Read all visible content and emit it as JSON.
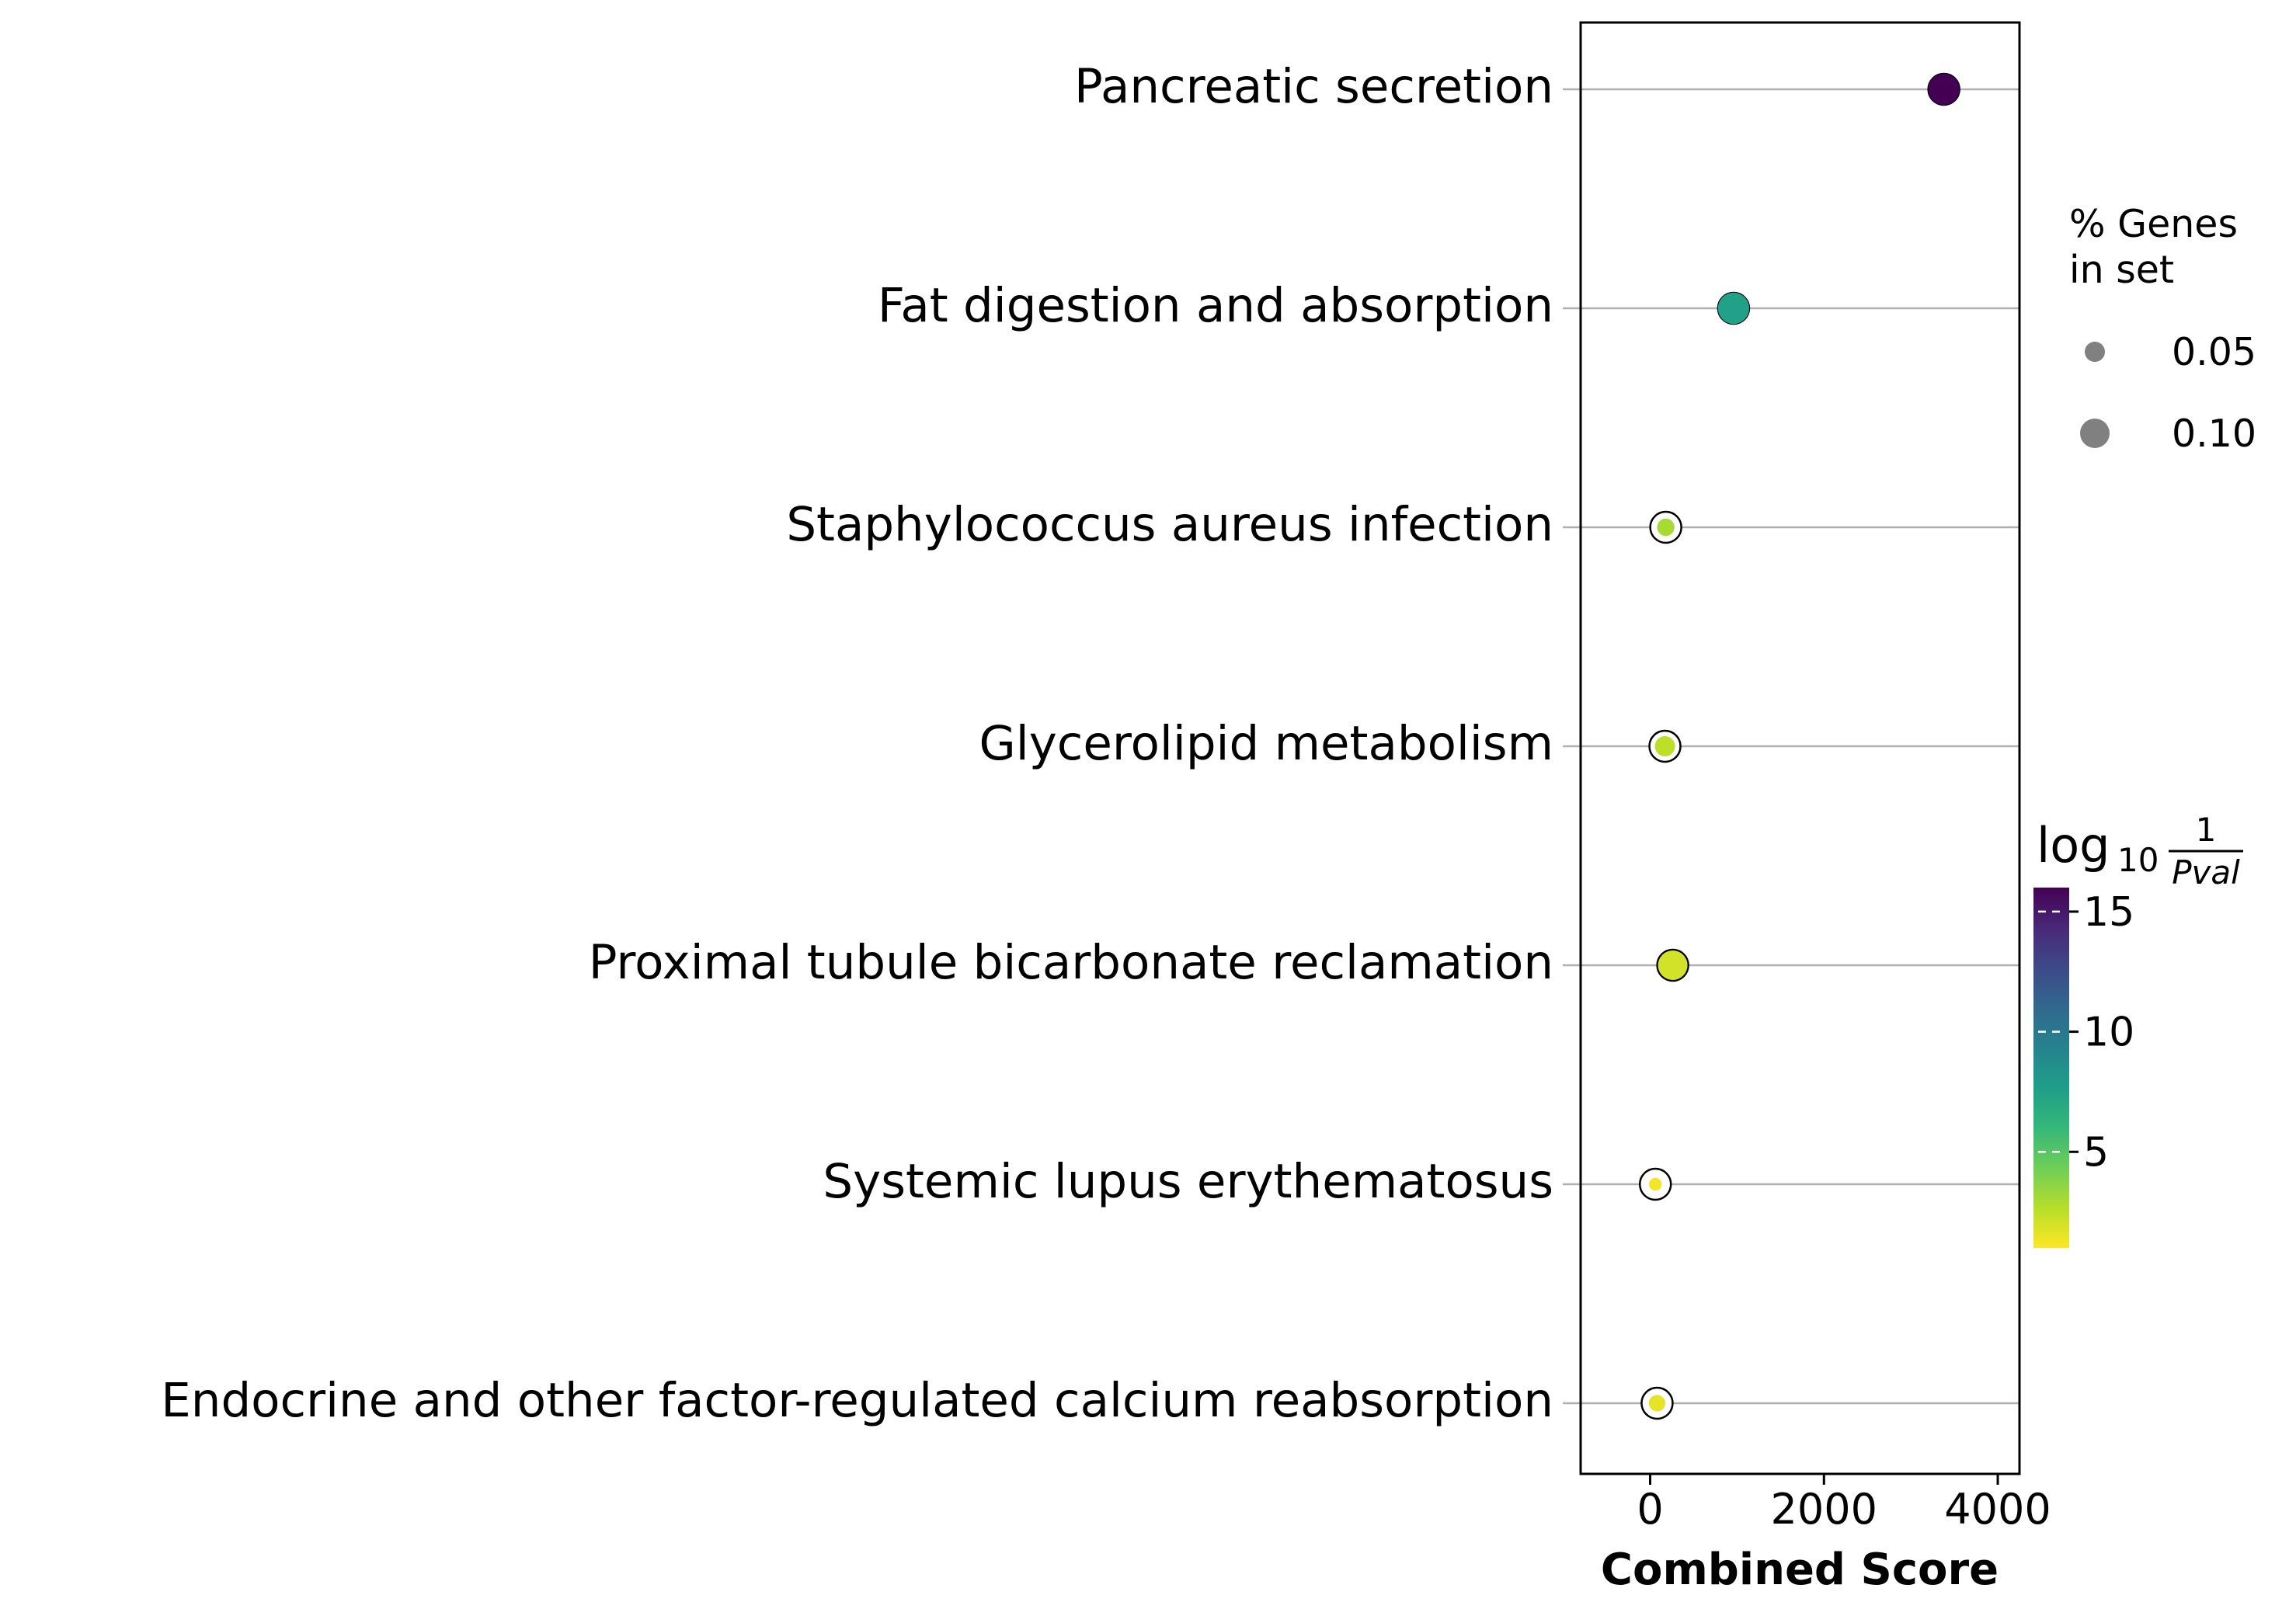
{
  "chart_data": {
    "type": "scatter",
    "title": "",
    "xlabel": "Combined Score",
    "ylabel": "",
    "xlim": [
      -800,
      4250
    ],
    "xticks": [
      0,
      2000,
      4000
    ],
    "xtick_labels": [
      "0",
      "2000",
      "4000"
    ],
    "grid": "horizontal lines at each category",
    "categories": [
      "Pancreatic secretion",
      "Fat digestion and absorption",
      "Staphylococcus aureus infection",
      "Glycerolipid metabolism",
      "Proximal tubule bicarbonate reclamation",
      "Systemic lupus erythematosus",
      "Endocrine and other factor-regulated calcium reabsorption"
    ],
    "series": [
      {
        "x": [
          3380,
          960,
          180,
          170,
          260,
          60,
          80
        ],
        "pct_genes": [
          0.11,
          0.11,
          0.035,
          0.05,
          0.1,
          0.01,
          0.03
        ],
        "log10_inv_pval": [
          16,
          7.5,
          3.0,
          2.5,
          2.0,
          1.2,
          1.5
        ]
      }
    ],
    "size_legend": {
      "title_lines": [
        "% Genes",
        "in set"
      ],
      "entries": [
        {
          "label": "0.05",
          "value": 0.05
        },
        {
          "label": "0.10",
          "value": 0.1
        }
      ],
      "placement": "right"
    },
    "colorbar": {
      "label_base": "log",
      "label_sub": "10",
      "label_num": "1",
      "label_den": "Pval",
      "min": 1,
      "max": 16,
      "ticks": [
        5,
        10,
        15
      ],
      "tick_labels": [
        "5",
        "10",
        "15"
      ],
      "colormap": "viridis",
      "placement": "right"
    },
    "colors": {
      "viridis": [
        "#fde725",
        "#b5de2b",
        "#6ece58",
        "#35b779",
        "#1f9e89",
        "#26828e",
        "#31688e",
        "#3e4989",
        "#482878",
        "#440154"
      ],
      "grid_line": "#b0b0b0",
      "size_legend_marker": "#808080",
      "marker_outline": "#000000"
    }
  }
}
